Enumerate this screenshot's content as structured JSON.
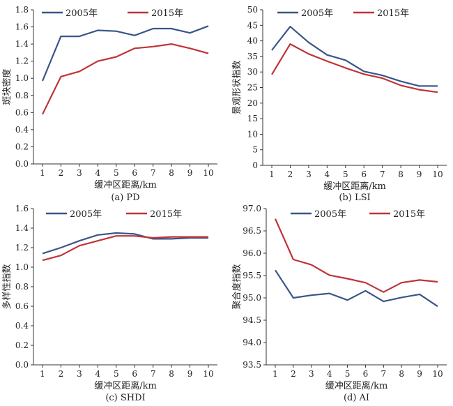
{
  "colors": {
    "series_2005": "#3a5589",
    "series_2015": "#bf3339",
    "axis": "#333333"
  },
  "chart_data": [
    {
      "id": "pd",
      "type": "line",
      "caption": "(a) PD",
      "xlabel": "缓冲区距离/km",
      "ylabel": "斑块密度",
      "x": [
        1,
        2,
        3,
        4,
        5,
        6,
        7,
        8,
        9,
        10
      ],
      "ylim": [
        0,
        1.8
      ],
      "ytick_step": 0.2,
      "ytick_decimals": 1,
      "legend_position": "top",
      "series": [
        {
          "name": "2005年",
          "values": [
            0.97,
            1.49,
            1.49,
            1.56,
            1.55,
            1.5,
            1.58,
            1.58,
            1.53,
            1.61
          ]
        },
        {
          "name": "2015年",
          "values": [
            0.58,
            1.02,
            1.08,
            1.2,
            1.25,
            1.35,
            1.37,
            1.4,
            1.35,
            1.29
          ]
        }
      ]
    },
    {
      "id": "lsi",
      "type": "line",
      "caption": "(b) LSI",
      "xlabel": "缓冲区距离/km",
      "ylabel": "景观形状指数",
      "x": [
        1,
        2,
        3,
        4,
        5,
        6,
        7,
        8,
        9,
        10
      ],
      "ylim": [
        0,
        50
      ],
      "ytick_step": 5,
      "ytick_decimals": 0,
      "legend_position": "top",
      "series": [
        {
          "name": "2005年",
          "values": [
            37.0,
            44.6,
            39.5,
            35.5,
            33.8,
            30.2,
            28.9,
            27.0,
            25.5,
            25.5
          ]
        },
        {
          "name": "2015年",
          "values": [
            29.2,
            39.0,
            35.8,
            33.5,
            31.3,
            29.3,
            28.0,
            25.7,
            24.3,
            23.5
          ]
        }
      ]
    },
    {
      "id": "shdi",
      "type": "line",
      "caption": "(c) SHDI",
      "xlabel": "缓冲区距离/km",
      "ylabel": "多样性指数",
      "x": [
        1,
        2,
        3,
        4,
        5,
        6,
        7,
        8,
        9,
        10
      ],
      "ylim": [
        0,
        1.6
      ],
      "ytick_step": 0.2,
      "ytick_decimals": 1,
      "legend_position": "top",
      "series": [
        {
          "name": "2005年",
          "values": [
            1.14,
            1.2,
            1.27,
            1.33,
            1.35,
            1.34,
            1.29,
            1.29,
            1.3,
            1.3
          ]
        },
        {
          "name": "2015年",
          "values": [
            1.07,
            1.12,
            1.22,
            1.27,
            1.32,
            1.32,
            1.3,
            1.31,
            1.31,
            1.31
          ]
        }
      ]
    },
    {
      "id": "ai",
      "type": "line",
      "caption": "(d) AI",
      "xlabel": "缓冲区距离/km",
      "ylabel": "聚合度指数",
      "x": [
        1,
        2,
        3,
        4,
        5,
        6,
        7,
        8,
        9,
        10
      ],
      "ylim": [
        93.5,
        97.0
      ],
      "ytick_step": 0.5,
      "ytick_decimals": 1,
      "legend_position": "top",
      "series": [
        {
          "name": "2005年",
          "values": [
            95.62,
            95.0,
            95.06,
            95.1,
            94.95,
            95.16,
            94.92,
            95.01,
            95.08,
            94.81
          ]
        },
        {
          "name": "2015年",
          "values": [
            96.77,
            95.86,
            95.74,
            95.51,
            95.43,
            95.34,
            95.13,
            95.34,
            95.4,
            95.36
          ]
        }
      ]
    }
  ]
}
